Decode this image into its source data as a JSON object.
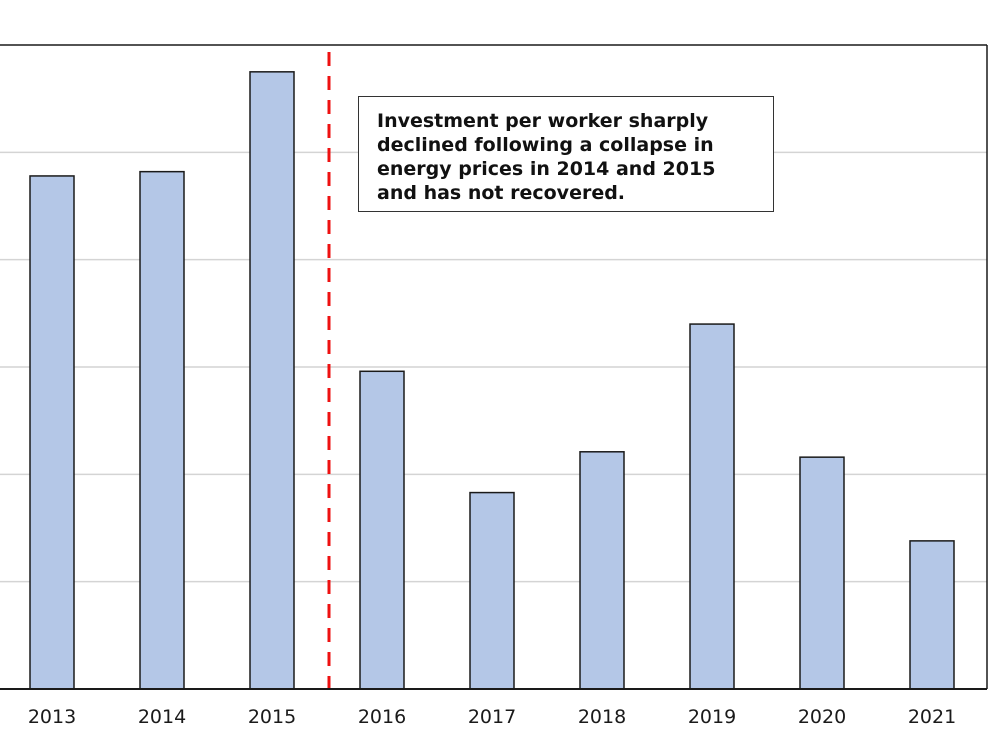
{
  "chart_data": {
    "type": "bar",
    "title": "",
    "xlabel": "",
    "ylabel": "",
    "categories": [
      "2013",
      "2014",
      "2015",
      "2016",
      "2017",
      "2018",
      "2019",
      "2020",
      "2021"
    ],
    "values": [
      4.78,
      4.82,
      5.75,
      2.96,
      1.83,
      2.21,
      3.4,
      2.16,
      1.38
    ],
    "ylim": [
      0,
      6
    ],
    "grid": true,
    "bar_color": "#b4c7e7",
    "reference_line": {
      "between": [
        "2015",
        "2016"
      ],
      "color": "#ee1111",
      "style": "dashed"
    },
    "annotation": {
      "lines": [
        "Investment per worker sharply",
        "declined following a collapse in",
        "energy prices in 2014 and 2015",
        "and has not recovered."
      ]
    }
  }
}
